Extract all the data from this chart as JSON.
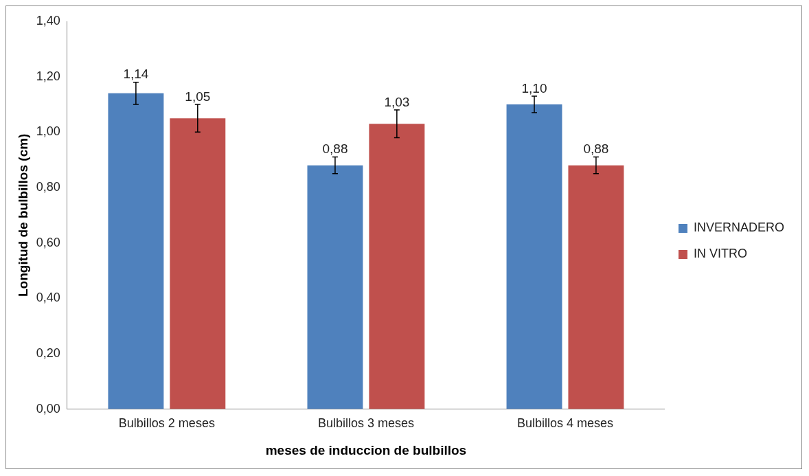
{
  "chart_data": {
    "type": "bar",
    "xlabel": "meses de induccion de bulbillos",
    "ylabel": "Longitud de bulbillos (cm)",
    "categories": [
      "Bulbillos 2 meses",
      "Bulbillos 3 meses",
      "Bulbillos 4 meses"
    ],
    "series": [
      {
        "name": "INVERNADERO",
        "color": "#4f81bd",
        "values": [
          1.14,
          0.88,
          1.1
        ],
        "errors": [
          0.04,
          0.03,
          0.03
        ],
        "value_labels": [
          "1,14",
          "0,88",
          "1,10"
        ]
      },
      {
        "name": "IN VITRO",
        "color": "#c0504d",
        "values": [
          1.05,
          1.03,
          0.88
        ],
        "errors": [
          0.05,
          0.05,
          0.03
        ],
        "value_labels": [
          "1,05",
          "1,03",
          "0,88"
        ]
      }
    ],
    "ylim": [
      0,
      1.4
    ],
    "yticks": [
      {
        "value": 0,
        "label": "0,00"
      },
      {
        "value": 0.2,
        "label": "0,20"
      },
      {
        "value": 0.4,
        "label": "0,40"
      },
      {
        "value": 0.6,
        "label": "0,60"
      },
      {
        "value": 0.8,
        "label": "0,80"
      },
      {
        "value": 1.0,
        "label": "1,00"
      },
      {
        "value": 1.2,
        "label": "1,20"
      },
      {
        "value": 1.4,
        "label": "1,40"
      }
    ],
    "grid": false,
    "legend": "right"
  }
}
